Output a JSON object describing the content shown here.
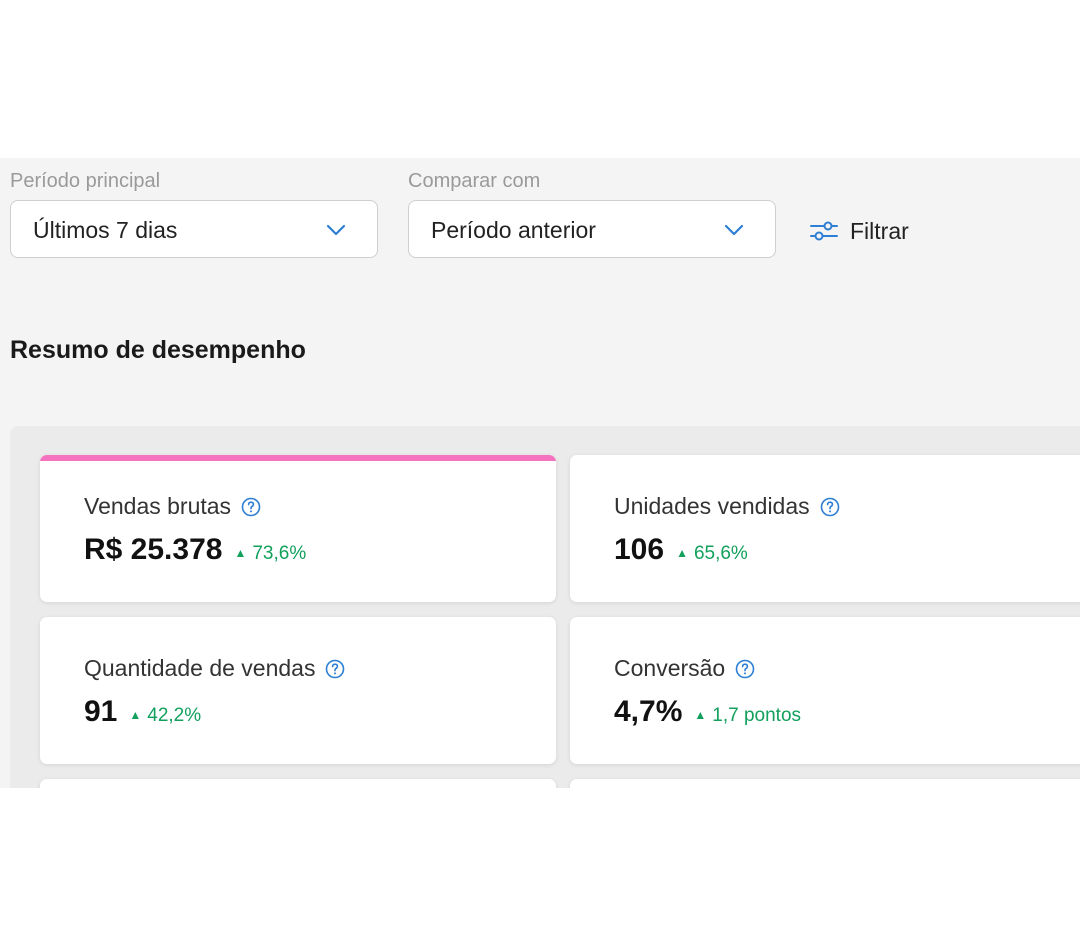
{
  "filters": {
    "main_period_label": "Período principal",
    "main_period_value": "Últimos 7 dias",
    "compare_label": "Comparar com",
    "compare_value": "Período anterior",
    "filter_button_label": "Filtrar"
  },
  "section_title": "Resumo de desempenho",
  "metrics": [
    {
      "title": "Vendas brutas",
      "value": "R$ 25.378",
      "delta": "73,6%",
      "trend": "up",
      "active": true
    },
    {
      "title": "Unidades vendidas",
      "value": "106",
      "delta": "65,6%",
      "trend": "up",
      "active": false
    },
    {
      "title": "Quantidade de vendas",
      "value": "91",
      "delta": "42,2%",
      "trend": "up",
      "active": false
    },
    {
      "title": "Conversão",
      "value": "4,7%",
      "delta": "1,7 pontos",
      "trend": "up",
      "active": false
    }
  ],
  "icons": {
    "dropdown": "chevron-down-icon",
    "filter": "sliders-icon",
    "help": "question-circle-icon",
    "trend_up": "triangle-up-icon"
  },
  "colors": {
    "accent_blue": "#2d7fd3",
    "positive_green": "#12a05c",
    "active_card_bar": "#f472c0",
    "background": "#f4f4f4"
  }
}
